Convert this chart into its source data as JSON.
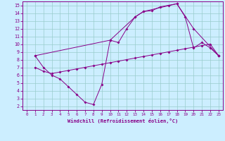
{
  "xlabel": "Windchill (Refroidissement éolien,°C)",
  "bg_color": "#cceeff",
  "line_color": "#880088",
  "grid_color": "#99cccc",
  "xlim": [
    -0.5,
    23.5
  ],
  "ylim": [
    1.5,
    15.5
  ],
  "xticks": [
    0,
    1,
    2,
    3,
    4,
    5,
    6,
    7,
    8,
    9,
    10,
    11,
    12,
    13,
    14,
    15,
    16,
    17,
    18,
    19,
    20,
    21,
    22,
    23
  ],
  "yticks": [
    2,
    3,
    4,
    5,
    6,
    7,
    8,
    9,
    10,
    11,
    12,
    13,
    14,
    15
  ],
  "line1_x": [
    1,
    2,
    3,
    4,
    5,
    6,
    7,
    8,
    9,
    10,
    11,
    12,
    13,
    14,
    15,
    16,
    17,
    18,
    19,
    20,
    21,
    22,
    23
  ],
  "line1_y": [
    8.5,
    7.0,
    6.0,
    5.5,
    4.5,
    3.5,
    2.5,
    2.2,
    4.8,
    10.5,
    10.2,
    12.0,
    13.5,
    14.2,
    14.3,
    14.8,
    15.0,
    15.2,
    13.5,
    9.5,
    10.2,
    9.5,
    8.5
  ],
  "line2_x": [
    1,
    2,
    3,
    4,
    5,
    6,
    7,
    8,
    9,
    10,
    11,
    12,
    13,
    14,
    15,
    16,
    17,
    18,
    19,
    20,
    21,
    22,
    23
  ],
  "line2_y": [
    7.0,
    6.5,
    6.2,
    6.4,
    6.6,
    6.8,
    7.0,
    7.2,
    7.4,
    7.6,
    7.8,
    8.0,
    8.2,
    8.4,
    8.6,
    8.8,
    9.0,
    9.2,
    9.4,
    9.6,
    9.8,
    10.0,
    8.5
  ],
  "line3_x": [
    1,
    10,
    13,
    14,
    18,
    20,
    23
  ],
  "line3_y": [
    8.5,
    10.5,
    13.5,
    14.2,
    15.2,
    12.0,
    8.5
  ]
}
